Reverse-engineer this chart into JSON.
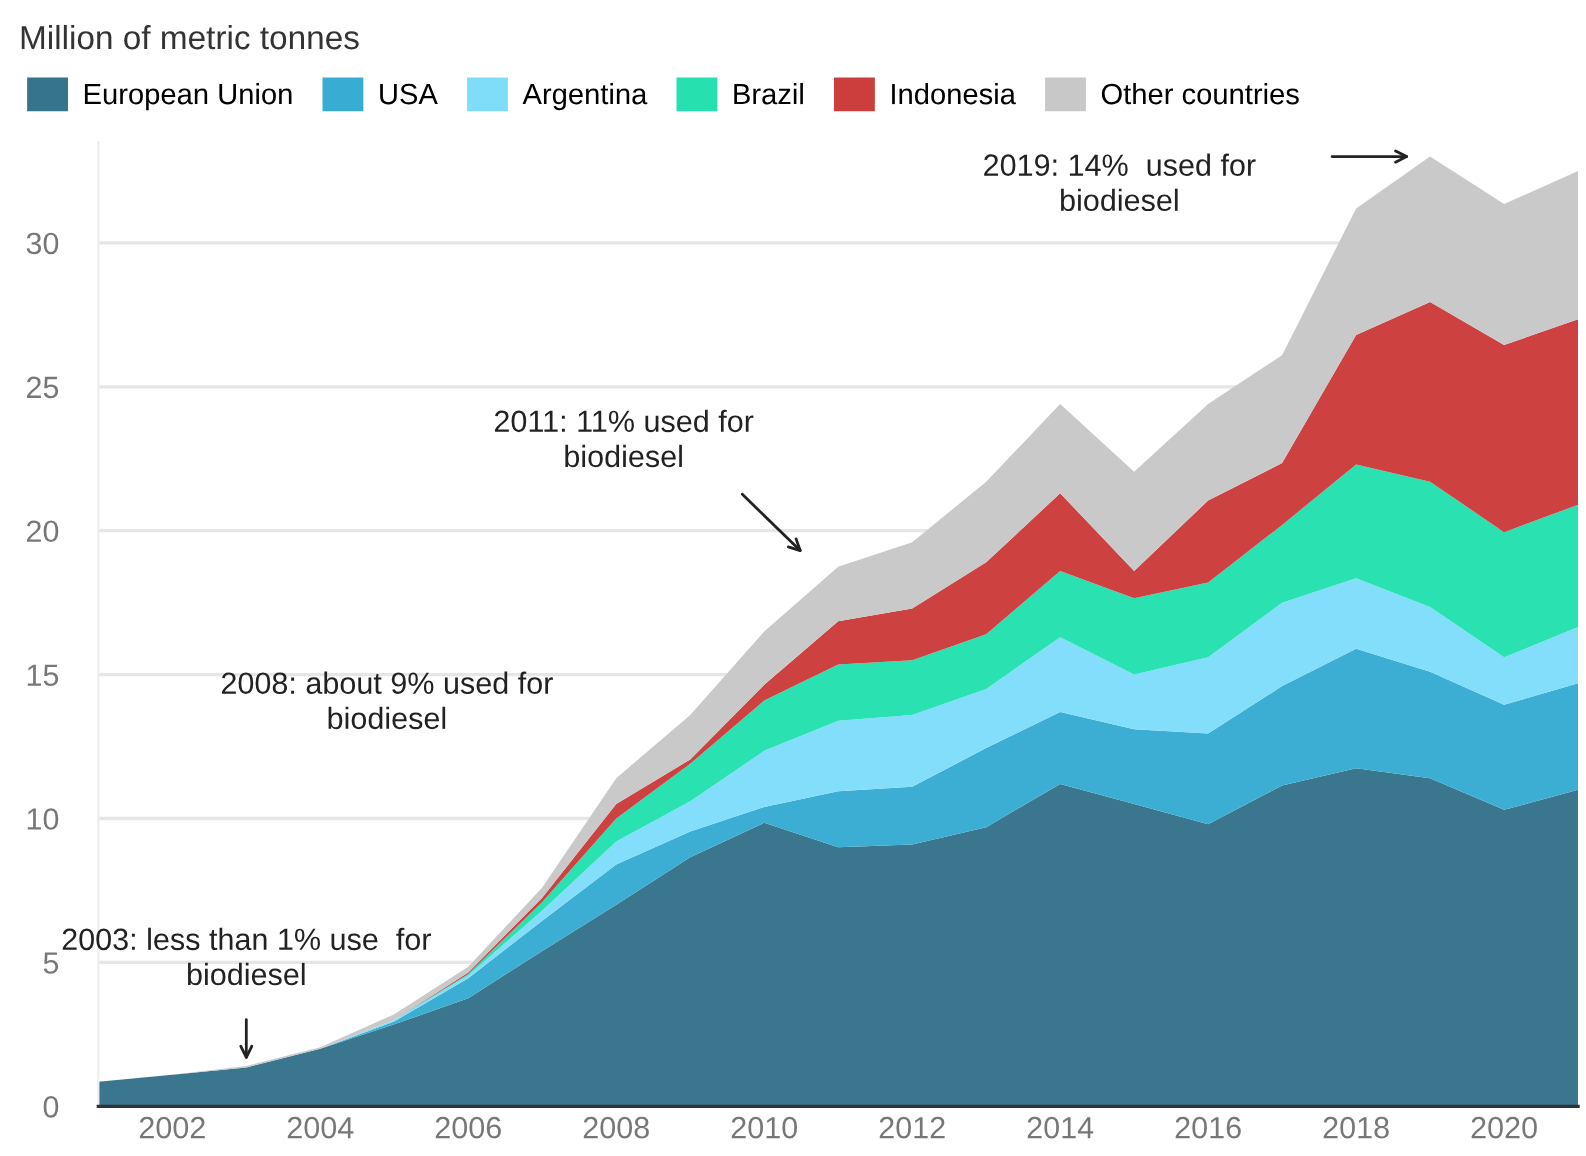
{
  "chart_data": {
    "type": "area",
    "title": "Million of metric tonnes",
    "stacked": true,
    "x": [
      2001,
      2002,
      2003,
      2004,
      2005,
      2006,
      2007,
      2008,
      2009,
      2010,
      2011,
      2012,
      2013,
      2014,
      2015,
      2016,
      2017,
      2018,
      2019,
      2020,
      2021
    ],
    "series": [
      {
        "name": "European Union",
        "color": "#36748c",
        "values": [
          0.85,
          1.1,
          1.35,
          2.0,
          2.85,
          3.75,
          5.4,
          7.0,
          8.65,
          9.85,
          9.0,
          9.1,
          9.7,
          11.2,
          10.5,
          9.8,
          11.15,
          11.75,
          11.4,
          10.3,
          11.0
        ]
      },
      {
        "name": "USA",
        "color": "#38acd3",
        "values": [
          0,
          0,
          0,
          0,
          0.1,
          0.7,
          1.05,
          1.4,
          0.9,
          0.55,
          1.95,
          2.0,
          2.75,
          2.5,
          2.6,
          3.15,
          3.45,
          4.15,
          3.7,
          3.65,
          3.7
        ]
      },
      {
        "name": "Argentina",
        "color": "#80ddfa",
        "values": [
          0,
          0,
          0,
          0,
          0.05,
          0.1,
          0.35,
          0.8,
          1.05,
          1.95,
          2.45,
          2.5,
          2.05,
          2.6,
          1.9,
          2.65,
          2.9,
          2.45,
          2.25,
          1.65,
          1.95
        ]
      },
      {
        "name": "Brazil",
        "color": "#26e0b0",
        "values": [
          0,
          0,
          0,
          0,
          0,
          0.05,
          0.3,
          0.8,
          1.3,
          1.75,
          1.95,
          1.9,
          1.9,
          2.3,
          2.65,
          2.6,
          2.7,
          3.95,
          4.35,
          4.35,
          4.25
        ]
      },
      {
        "name": "Indonesia",
        "color": "#cc3d3d",
        "values": [
          0,
          0,
          0,
          0,
          0,
          0.05,
          0.15,
          0.5,
          0.15,
          0.55,
          1.5,
          1.8,
          2.5,
          2.7,
          0.95,
          2.85,
          2.15,
          4.5,
          6.25,
          6.5,
          6.45
        ]
      },
      {
        "name": "Other countries",
        "color": "#c8c8c8",
        "values": [
          0,
          0,
          0.05,
          0.05,
          0.2,
          0.2,
          0.35,
          0.9,
          1.55,
          1.85,
          1.9,
          2.3,
          2.8,
          3.1,
          3.45,
          3.35,
          3.75,
          4.4,
          5.05,
          4.9,
          5.15
        ]
      }
    ],
    "xlim": [
      2001,
      2021
    ],
    "xticks": [
      2002,
      2004,
      2006,
      2008,
      2010,
      2012,
      2014,
      2016,
      2018,
      2020
    ],
    "ylim": [
      0,
      33.5
    ],
    "yticks": [
      0,
      5,
      10,
      15,
      20,
      25,
      30
    ],
    "grid": "y",
    "legend": "top",
    "annotations": [
      {
        "text": "2003: less than 1% use  for\nbiodiesel",
        "x": 2003,
        "y": 1.4
      },
      "2008: about 9% used for\nbiodiesel",
      "2011: 11% used for\nbiodiesel",
      "2019: 14%  used for\nbiodiesel"
    ]
  }
}
